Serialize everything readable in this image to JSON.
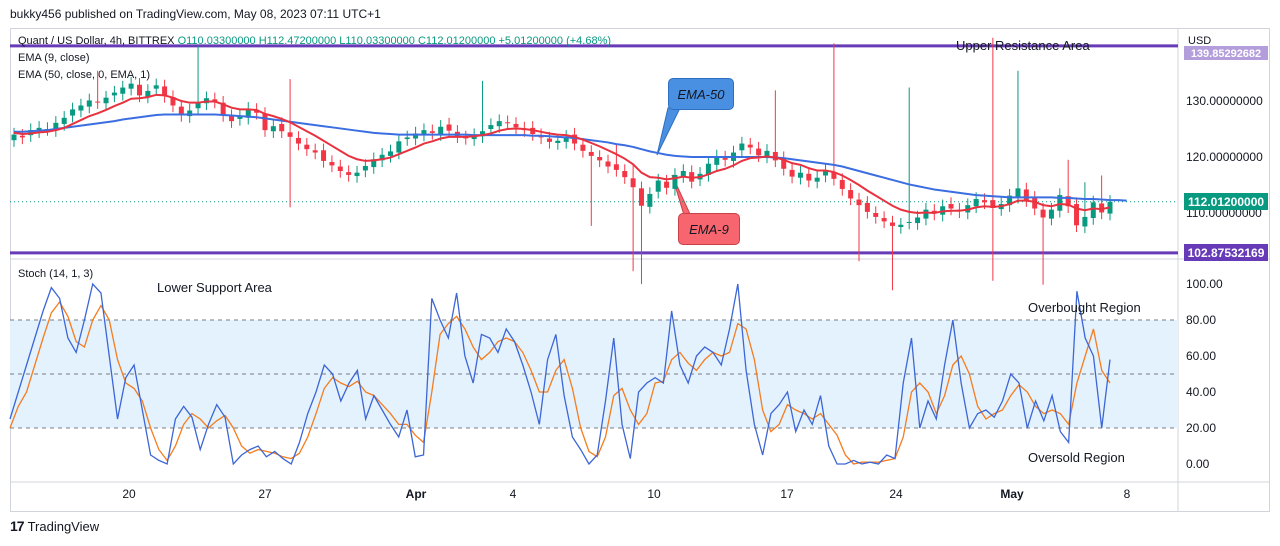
{
  "publisher": "bukky456 published on TradingView.com, May 08, 2023 07:11 UTC+1",
  "brand": {
    "logo_text": "17",
    "name": "TradingView"
  },
  "legend": {
    "symbol_line": "Quant / US Dollar, 4h, BITTREX",
    "ohlc": "O110.03300000  H112.47200000  L110.03300000  C112.01200000  +5.01200000 (+4.68%)",
    "ema9": "EMA (9, close)",
    "ema50": "EMA (50, close, 0, EMA, 1)",
    "stoch": "Stoch (14, 1, 3)"
  },
  "annotations": {
    "upper_resistance": "Upper Resistance Area",
    "lower_support": "Lower Support Area",
    "overbought": "Overbought Region",
    "oversold": "Oversold Region",
    "ema50_bubble": "EMA-50",
    "ema9_bubble": "EMA-9"
  },
  "price_tags": {
    "current": "112.01200000",
    "support": "102.87532169",
    "resistance_partial": "139.85292682"
  },
  "colors": {
    "up": "#089981",
    "down": "#f23645",
    "ema9": "#e8323f",
    "ema50": "#3b6ee0",
    "level": "#673ab7",
    "stoch_k": "#3d66d6",
    "stoch_d": "#f57c1f",
    "stoch_band": "#e3f2fd",
    "bubble_blue": "#4a90e2",
    "bubble_red": "#f7666e"
  },
  "chart_data": [
    {
      "type": "candlestick",
      "title": "Quant / US Dollar, 4h, BITTREX",
      "currency": "USD",
      "ylim": [
        100,
        142
      ],
      "y_ticks": [
        "110.00000000",
        "120.00000000",
        "130.00000000"
      ],
      "x_ticks": [
        "20",
        "27",
        "Apr",
        "4",
        "10",
        "17",
        "24",
        "May",
        "8"
      ],
      "levels": [
        {
          "name": "Upper Resistance Area",
          "value": 139.85
        },
        {
          "name": "Lower Support Area",
          "value": 102.875
        }
      ],
      "last_close": 112.012,
      "closes": [
        124,
        123.5,
        124.8,
        125.2,
        125,
        126.1,
        127,
        128.5,
        129.2,
        130.1,
        129.8,
        130.6,
        131.5,
        132.4,
        133.1,
        131,
        131.8,
        132.8,
        130.9,
        129.2,
        127.5,
        128.3,
        129.8,
        130.5,
        129.9,
        127.5,
        126.4,
        127.2,
        128.6,
        127.9,
        124.8,
        125.5,
        124.6,
        123.6,
        122.4,
        121.4,
        120.8,
        119.3,
        118.5,
        117.5,
        116.8,
        117.2,
        118.4,
        119.6,
        120.4,
        121,
        122.8,
        123.5,
        124.2,
        124.8,
        124.3,
        125.4,
        124.7,
        123.7,
        123.4,
        123.9,
        124.6,
        125.7,
        126.4,
        126.1,
        125.3,
        124.8,
        124.1,
        123.5,
        122.7,
        122.9,
        123.6,
        122.4,
        121.1,
        120.2,
        119.4,
        118.3,
        117.7,
        116.4,
        114.6,
        111.3,
        113.4,
        115.8,
        114.5,
        116.8,
        117.5,
        115.6,
        117,
        118.8,
        120.1,
        119.5,
        120.8,
        122.4,
        121.7,
        120.3,
        121.1,
        119.4,
        117.9,
        116.5,
        117.2,
        115.8,
        116.3,
        117.5,
        116.1,
        114.3,
        112.6,
        111.4,
        110.2,
        109.3,
        108.5,
        107.7,
        107.9,
        108.4,
        109.2,
        110.6,
        109.9,
        111.2,
        110.8,
        110.3,
        111.4,
        112.5,
        111.9,
        110.9,
        111.6,
        113.1,
        114.4,
        112.3,
        110.8,
        109.2,
        110.6,
        113.2,
        111.2,
        107.8,
        109.3,
        111.9,
        110.1,
        112
      ],
      "ema9": [
        124.3,
        124.1,
        124.2,
        124.4,
        124.5,
        124.8,
        125.2,
        125.9,
        126.6,
        127.3,
        127.8,
        128.4,
        129.1,
        129.7,
        130.4,
        130.5,
        130.7,
        131.1,
        131,
        130.6,
        130,
        129.7,
        129.7,
        129.9,
        129.9,
        129.4,
        128.8,
        128.5,
        128.5,
        128.4,
        127.7,
        127.3,
        126.8,
        126.2,
        125.4,
        124.6,
        123.8,
        122.9,
        122,
        121.1,
        120.2,
        119.6,
        119.3,
        119.4,
        119.6,
        119.9,
        120.5,
        121.1,
        121.7,
        122.4,
        122.8,
        123.3,
        123.6,
        123.6,
        123.6,
        123.7,
        123.9,
        124.2,
        124.7,
        125,
        125.1,
        125,
        124.8,
        124.5,
        124.2,
        124,
        123.9,
        123.6,
        123.1,
        122.5,
        121.9,
        121.2,
        120.5,
        119.7,
        118.7,
        117.2,
        116.4,
        116.3,
        116,
        116.2,
        116.5,
        116.3,
        116.4,
        116.9,
        117.5,
        117.9,
        118.5,
        119.3,
        119.8,
        119.9,
        120.1,
        119.9,
        119.5,
        118.9,
        118.6,
        118,
        117.6,
        117.6,
        117.3,
        116.7,
        115.9,
        115,
        114,
        113.1,
        112.2,
        111.3,
        110.6,
        110.2,
        110,
        110.1,
        110,
        110.3,
        110.4,
        110.4,
        110.6,
        111,
        111.2,
        111.1,
        111.2,
        111.6,
        112.2,
        112.2,
        112,
        111.4,
        111.2,
        111.6,
        111.5,
        110.8,
        110.5,
        110.8,
        110.7,
        111
      ],
      "ema50": [
        124.5,
        124.5,
        124.6,
        124.7,
        124.8,
        125,
        125.2,
        125.4,
        125.6,
        125.8,
        126,
        126.2,
        126.4,
        126.7,
        126.9,
        127.1,
        127.3,
        127.5,
        127.6,
        127.6,
        127.6,
        127.6,
        127.6,
        127.6,
        127.6,
        127.5,
        127.4,
        127.3,
        127.2,
        127.1,
        126.9,
        126.7,
        126.5,
        126.3,
        126.1,
        125.9,
        125.7,
        125.5,
        125.3,
        125.1,
        124.9,
        124.7,
        124.5,
        124.3,
        124.2,
        124.1,
        124,
        124,
        124,
        124,
        124,
        124,
        124,
        124,
        124,
        123.9,
        123.9,
        123.9,
        123.9,
        123.9,
        123.9,
        123.9,
        123.8,
        123.8,
        123.7,
        123.6,
        123.5,
        123.4,
        123.2,
        123,
        122.8,
        122.6,
        122.3,
        122.1,
        121.8,
        121.4,
        121,
        120.7,
        120.4,
        120.2,
        120.1,
        120,
        120,
        120,
        120,
        120,
        120,
        120,
        120,
        120,
        120,
        119.9,
        119.8,
        119.6,
        119.4,
        119.2,
        119,
        118.8,
        118.6,
        118.3,
        117.9,
        117.5,
        117.1,
        116.7,
        116.3,
        115.9,
        115.5,
        115.1,
        114.8,
        114.5,
        114.2,
        114,
        113.8,
        113.6,
        113.4,
        113.2,
        113.1,
        113,
        112.9,
        112.8,
        112.8,
        112.8,
        112.8,
        112.8,
        112.8,
        112.7,
        112.7,
        112.6,
        112.5,
        112.5,
        112.4,
        112.3,
        112.3,
        112.2
      ]
    },
    {
      "type": "line",
      "title": "Stoch (14, 1, 3)",
      "ylim": [
        -10,
        110
      ],
      "y_ticks": [
        "0.00",
        "20.00",
        "40.00",
        "60.00",
        "80.00",
        "100.00"
      ],
      "bands": {
        "upper": 80,
        "middle": 50,
        "lower": 20
      },
      "series": [
        {
          "name": "%K",
          "values": [
            25,
            40,
            55,
            70,
            85,
            98,
            92,
            70,
            62,
            80,
            100,
            95,
            60,
            25,
            48,
            55,
            30,
            5,
            2,
            0,
            25,
            32,
            26,
            8,
            22,
            33,
            26,
            0,
            5,
            8,
            10,
            4,
            7,
            3,
            0,
            12,
            28,
            40,
            55,
            50,
            35,
            45,
            52,
            25,
            38,
            30,
            22,
            15,
            30,
            4,
            5,
            92,
            80,
            70,
            95,
            60,
            45,
            72,
            70,
            62,
            75,
            68,
            55,
            40,
            22,
            58,
            72,
            38,
            15,
            8,
            0,
            5,
            35,
            70,
            22,
            3,
            40,
            45,
            48,
            45,
            85,
            55,
            45,
            60,
            65,
            62,
            55,
            75,
            100,
            52,
            22,
            5,
            28,
            33,
            40,
            18,
            30,
            22,
            38,
            10,
            0,
            0,
            2,
            0,
            1,
            0,
            5,
            3,
            45,
            70,
            20,
            35,
            25,
            55,
            80,
            45,
            20,
            28,
            30,
            26,
            35,
            50,
            45,
            20,
            35,
            24,
            38,
            18,
            12,
            96,
            70,
            60,
            20,
            58
          ]
        },
        {
          "name": "%D",
          "values": [
            20,
            32,
            40,
            55,
            70,
            84,
            90,
            82,
            68,
            65,
            80,
            88,
            80,
            58,
            45,
            42,
            35,
            20,
            8,
            2,
            10,
            22,
            28,
            25,
            20,
            24,
            27,
            20,
            10,
            6,
            8,
            7,
            6,
            4,
            3,
            6,
            15,
            28,
            42,
            48,
            45,
            43,
            46,
            40,
            38,
            33,
            28,
            22,
            22,
            16,
            12,
            40,
            72,
            78,
            82,
            75,
            65,
            58,
            62,
            68,
            70,
            68,
            62,
            52,
            40,
            40,
            52,
            58,
            42,
            20,
            7,
            4,
            15,
            38,
            42,
            30,
            22,
            28,
            45,
            46,
            58,
            62,
            56,
            52,
            58,
            62,
            60,
            62,
            78,
            75,
            58,
            30,
            18,
            22,
            33,
            30,
            28,
            25,
            28,
            22,
            16,
            5,
            0,
            1,
            1,
            1,
            2,
            3,
            15,
            40,
            45,
            40,
            28,
            38,
            55,
            60,
            50,
            32,
            25,
            28,
            30,
            38,
            44,
            40,
            32,
            28,
            30,
            28,
            22,
            45,
            60,
            75,
            52,
            45
          ]
        }
      ]
    }
  ]
}
